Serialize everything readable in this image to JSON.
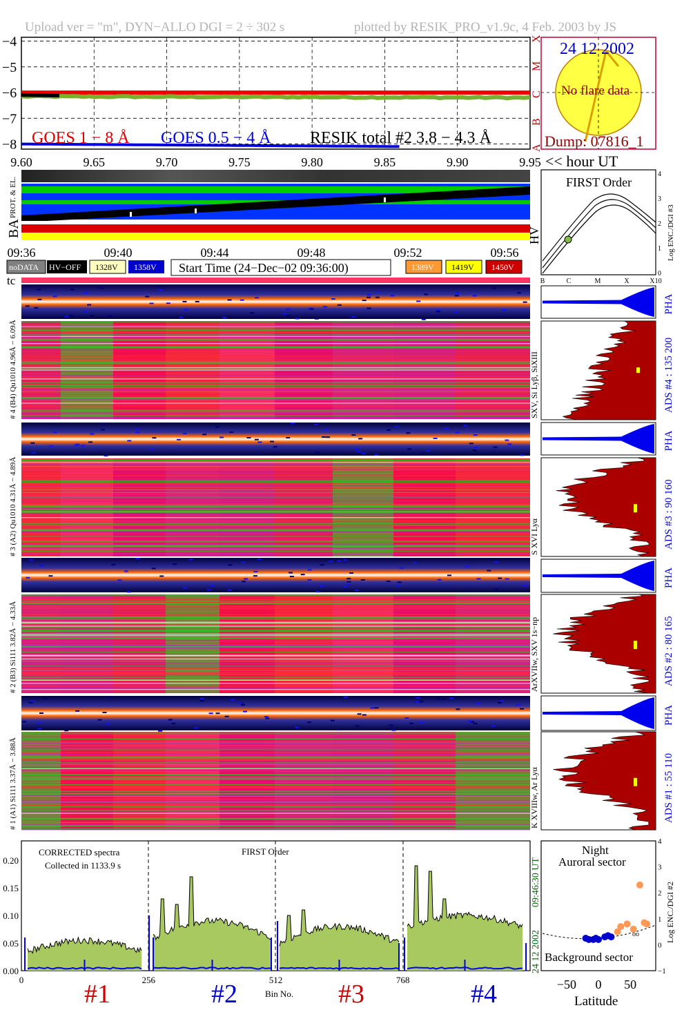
{
  "header": {
    "upload": "Upload ver = \"m\", DYN−ALLO DGI =   2 ÷ 302 s",
    "plotted": "plotted by RESIK_PRO_v1.9c, 4 Feb. 2003 by JS"
  },
  "goes": {
    "legend_goes1": "GOES 1 − 8 Å",
    "legend_goes05": "GOES 0.5 − 4 Å",
    "legend_resik": "RESIK total #2  3.8 − 4.3 Å",
    "hour_label": "<< hour UT",
    "y_ticks": [
      "−4",
      "−5",
      "−6",
      "−7",
      "−8"
    ],
    "x_ticks": [
      "9.60",
      "9.65",
      "9.70",
      "9.75",
      "9.80",
      "9.85",
      "9.90",
      "9.95"
    ],
    "class_letters": [
      "X",
      "M",
      "C",
      "B",
      "A"
    ]
  },
  "sun": {
    "date": "24 12 2002",
    "no_flare": "No flare data",
    "dump": "Dump: 07816_1"
  },
  "status": {
    "label_prot": "PROT. & EL.",
    "label_ba": "BA",
    "time_ticks": [
      "09:36",
      "09:40",
      "09:44",
      "09:48",
      "09:52",
      "09:56"
    ]
  },
  "legend": {
    "nodata": "noDATA",
    "hvoff": "HV−OFF",
    "v1328": "1328V",
    "v1358": "1358V",
    "start_time": "Start Time (24−Dec−02 09:36:00)",
    "v1389": "1389V",
    "v1419": "1419V",
    "v1450": "1450V",
    "colors": {
      "nodata": "#808080",
      "hvoff": "#000000",
      "v1328": "#ffffc0",
      "v1358": "#0000cc",
      "v1389": "#ff9933",
      "v1419": "#ffff00",
      "v1450": "#cc0000"
    }
  },
  "hv_panel": {
    "title": "FIRST Order",
    "hv_label": "HV",
    "ylabel": "Log ENC./DGI #3",
    "y_ticks": [
      "0",
      "1",
      "2",
      "3",
      "4"
    ],
    "x_ticks": [
      "B",
      "C",
      "M",
      "X",
      "X10"
    ]
  },
  "tc_label": "tc",
  "channels": [
    {
      "pha_label": "# 4 (B4) Qu1010 4.96Å − 6.09Å",
      "lines": "SXV, Si Lyβ, SiXIII",
      "ads": "ADS #4 :   135 200"
    },
    {
      "pha_label": "# 3 (A2) Qu1010  4.31Å − 4.89Å",
      "lines": "S XVI Lyα",
      "ads": "ADS #3 :   90 160"
    },
    {
      "pha_label": "# 2 (B3) Si111  3.82Å − 4.33Å",
      "lines": "ArXVIIw, SXV 1s−np",
      "ads": "ADS #2 :   80 165"
    },
    {
      "pha_label": "# 1 (A1) Si111  3.37Å − 3.88Å",
      "lines": "K XVIIIw, Ar Lyα",
      "ads": "ADS #1 :   55 110"
    }
  ],
  "pha_tag": "PHA",
  "spectrum": {
    "title1": "CORRECTED spectra",
    "title2": "Collected in  1133.9 s",
    "order": "FIRST Order",
    "time_side": "09:46:30 UT",
    "date_side": "24 12 2002",
    "x_ticks": [
      "0",
      "256",
      "512",
      "768"
    ],
    "x_label": "Bin No.",
    "y_ticks": [
      "0.00",
      "0.05",
      "0.10",
      "0.15",
      "0.20"
    ],
    "channel_labels": [
      "#1",
      "#2",
      "#3",
      "#4"
    ]
  },
  "latitude": {
    "night": "Night",
    "auroral": "Auroral sector",
    "background": "Background sector",
    "xlabel": "Latitude",
    "ylabel": "Log ENC./DGI #2",
    "x_ticks": [
      "−50",
      "0",
      "50"
    ],
    "y_ticks": [
      "−1",
      "0",
      "1",
      "2",
      "3",
      "4"
    ],
    "small_mark": "oo"
  },
  "chart_data": [
    {
      "type": "line",
      "title": "",
      "series": [
        {
          "name": "GOES 1 − 8 Å",
          "x": [
            9.6,
            9.95
          ],
          "y": [
            -6.0,
            -6.0
          ]
        },
        {
          "name": "RESIK total #2  3.8 − 4.3 Å",
          "x": [
            9.6,
            9.95
          ],
          "y": [
            -6.15,
            -6.2
          ]
        },
        {
          "name": "GOES 0.5 − 4 Å",
          "x": [
            9.6,
            9.86
          ],
          "y": [
            -8.0,
            -8.1
          ]
        }
      ],
      "xlabel": "hour UT",
      "xlim": [
        9.6,
        9.95
      ],
      "ylim": [
        -8.2,
        -3.85
      ]
    },
    {
      "type": "scatter",
      "title": "",
      "xlabel": "Latitude",
      "ylabel": "Log ENC./DGI #2",
      "xlim": [
        -90,
        90
      ],
      "ylim": [
        -1,
        4
      ],
      "series": [
        {
          "name": "",
          "color": "#0000cc",
          "x": [
            -20,
            -15,
            -8,
            -4,
            0,
            10,
            15,
            20
          ],
          "y": [
            0.25,
            0.2,
            0.2,
            0.25,
            0.2,
            0.3,
            0.35,
            0.3
          ]
        },
        {
          "name": "",
          "color": "#ff9955",
          "x": [
            30,
            35,
            45,
            55,
            65,
            72,
            76
          ],
          "y": [
            0.5,
            0.7,
            0.8,
            0.6,
            2.3,
            0.85,
            0.8
          ]
        }
      ]
    }
  ]
}
